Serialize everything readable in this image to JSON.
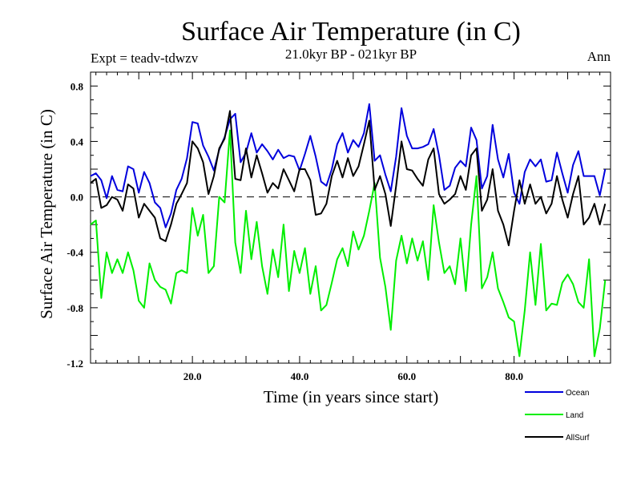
{
  "chart_data": {
    "type": "line",
    "title": "Surface Air Temperature (in C)",
    "subtitle": "21.0kyr BP - 021kyr BP",
    "left_note": "Expt = teadv-tdwzv",
    "right_note": "Ann",
    "xlabel": "Time (in years since start)",
    "ylabel": "Surface Air Temperature (in C)",
    "xlim": [
      1,
      98
    ],
    "ylim": [
      -1.2,
      0.9
    ],
    "xticks": [
      {
        "value": 20,
        "label": "20.0"
      },
      {
        "value": 40,
        "label": "40.0"
      },
      {
        "value": 60,
        "label": "60.0"
      },
      {
        "value": 80,
        "label": "80.0"
      }
    ],
    "yticks": [
      {
        "value": 0.8,
        "label": "0.8"
      },
      {
        "value": 0.4,
        "label": "0.4"
      },
      {
        "value": 0.0,
        "label": "0.0"
      },
      {
        "value": -0.4,
        "label": "-0.4"
      },
      {
        "value": -0.8,
        "label": "-0.8"
      },
      {
        "value": -1.2,
        "label": "-1.2"
      }
    ],
    "zero_line": {
      "value": 0.0,
      "style": "dashed"
    },
    "x_start": 1,
    "series": [
      {
        "name": "Ocean",
        "color": "#0000dd",
        "values": [
          0.15,
          0.17,
          0.12,
          -0.01,
          0.15,
          0.05,
          0.04,
          0.22,
          0.2,
          0.03,
          0.18,
          0.1,
          -0.04,
          -0.08,
          -0.22,
          -0.12,
          0.05,
          0.13,
          0.28,
          0.54,
          0.53,
          0.37,
          0.29,
          0.19,
          0.34,
          0.43,
          0.56,
          0.6,
          0.25,
          0.32,
          0.46,
          0.32,
          0.38,
          0.33,
          0.27,
          0.34,
          0.28,
          0.3,
          0.29,
          0.19,
          0.31,
          0.44,
          0.29,
          0.11,
          0.08,
          0.2,
          0.38,
          0.46,
          0.32,
          0.41,
          0.36,
          0.46,
          0.67,
          0.26,
          0.3,
          0.16,
          0.04,
          0.29,
          0.64,
          0.44,
          0.35,
          0.35,
          0.36,
          0.38,
          0.49,
          0.3,
          0.05,
          0.08,
          0.21,
          0.26,
          0.22,
          0.5,
          0.41,
          0.06,
          0.15,
          0.52,
          0.27,
          0.14,
          0.31,
          0.03,
          -0.05,
          0.18,
          0.27,
          0.22,
          0.27,
          0.11,
          0.12,
          0.32,
          0.17,
          0.03,
          0.23,
          0.33,
          0.15,
          0.15,
          0.15,
          0.01,
          0.2
        ]
      },
      {
        "name": "Land",
        "color": "#00ee00",
        "values": [
          -0.2,
          -0.17,
          -0.73,
          -0.4,
          -0.55,
          -0.45,
          -0.55,
          -0.4,
          -0.53,
          -0.75,
          -0.8,
          -0.48,
          -0.6,
          -0.65,
          -0.67,
          -0.77,
          -0.55,
          -0.53,
          -0.55,
          -0.08,
          -0.28,
          -0.13,
          -0.55,
          -0.5,
          0.0,
          -0.04,
          0.48,
          -0.33,
          -0.55,
          -0.1,
          -0.45,
          -0.18,
          -0.5,
          -0.7,
          -0.38,
          -0.58,
          -0.2,
          -0.68,
          -0.39,
          -0.55,
          -0.37,
          -0.7,
          -0.5,
          -0.82,
          -0.78,
          -0.62,
          -0.45,
          -0.37,
          -0.5,
          -0.25,
          -0.38,
          -0.28,
          -0.1,
          0.1,
          -0.44,
          -0.65,
          -0.96,
          -0.46,
          -0.28,
          -0.48,
          -0.3,
          -0.46,
          -0.32,
          -0.6,
          -0.06,
          -0.33,
          -0.55,
          -0.5,
          -0.63,
          -0.3,
          -0.68,
          -0.2,
          0.15,
          -0.66,
          -0.58,
          -0.4,
          -0.66,
          -0.76,
          -0.87,
          -0.9,
          -1.15,
          -0.82,
          -0.4,
          -0.78,
          -0.34,
          -0.82,
          -0.77,
          -0.78,
          -0.62,
          -0.56,
          -0.63,
          -0.76,
          -0.8,
          -0.45,
          -1.15,
          -0.95,
          -0.6
        ]
      },
      {
        "name": "AllSurf",
        "color": "#000000",
        "values": [
          0.1,
          0.13,
          -0.08,
          -0.06,
          0.0,
          -0.02,
          -0.1,
          0.09,
          0.06,
          -0.15,
          -0.05,
          -0.1,
          -0.15,
          -0.3,
          -0.32,
          -0.2,
          -0.05,
          0.02,
          0.1,
          0.4,
          0.35,
          0.25,
          0.02,
          0.15,
          0.35,
          0.42,
          0.62,
          0.13,
          0.12,
          0.35,
          0.14,
          0.3,
          0.17,
          0.03,
          0.1,
          0.06,
          0.2,
          0.12,
          0.04,
          0.2,
          0.2,
          0.12,
          -0.13,
          -0.12,
          -0.05,
          0.15,
          0.26,
          0.14,
          0.28,
          0.15,
          0.22,
          0.38,
          0.55,
          0.05,
          0.15,
          0.02,
          -0.21,
          0.08,
          0.4,
          0.2,
          0.19,
          0.13,
          0.08,
          0.27,
          0.35,
          0.02,
          -0.05,
          -0.02,
          0.02,
          0.15,
          0.05,
          0.3,
          0.35,
          -0.1,
          -0.02,
          0.2,
          -0.1,
          -0.2,
          -0.35,
          -0.1,
          0.12,
          -0.05,
          0.09,
          -0.05,
          0.0,
          -0.12,
          -0.05,
          0.15,
          -0.02,
          -0.15,
          0.02,
          0.15,
          -0.2,
          -0.15,
          -0.05,
          -0.2,
          -0.05
        ]
      }
    ],
    "legend": {
      "placement": "bottom-right",
      "entries": [
        {
          "label": "Ocean",
          "color": "#0000dd"
        },
        {
          "label": "Land",
          "color": "#00ee00"
        },
        {
          "label": "AllSurf",
          "color": "#000000"
        }
      ]
    }
  }
}
